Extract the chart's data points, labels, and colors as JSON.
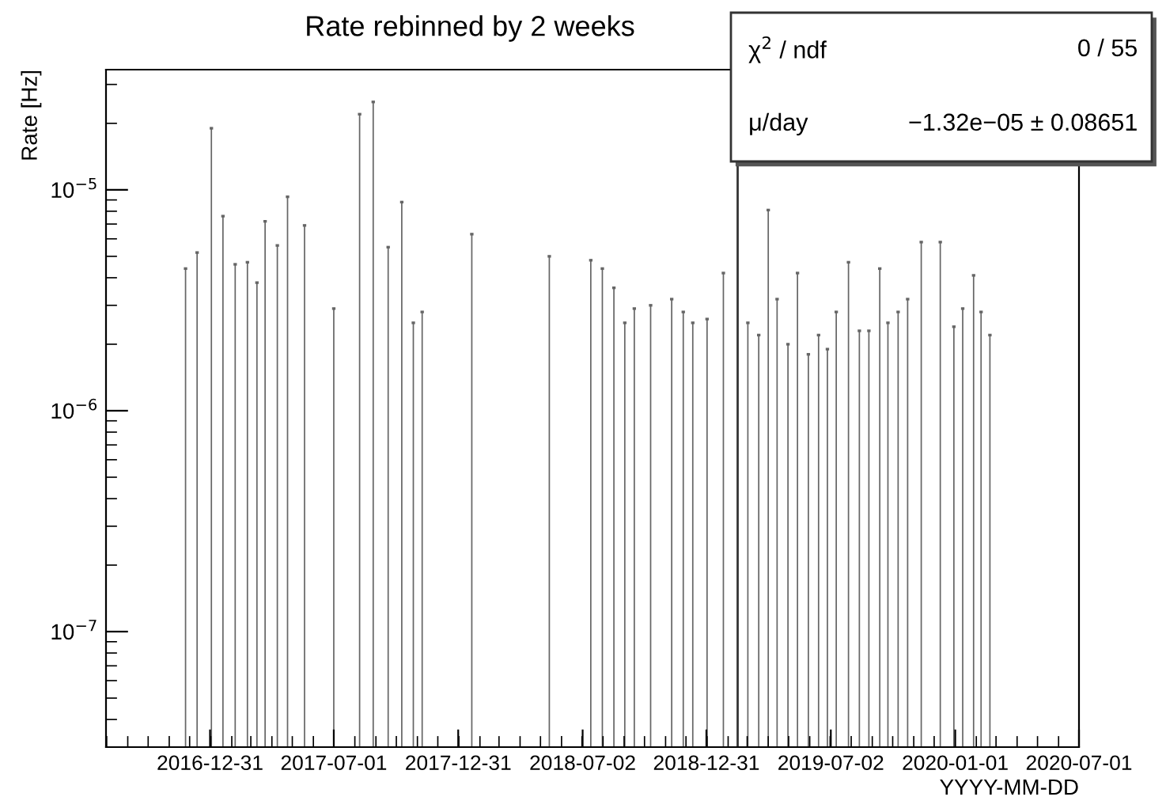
{
  "chart_data": {
    "type": "bar",
    "title": "Rate rebinned by 2 weeks",
    "xlabel": "YYYY-MM-DD",
    "ylabel": "Rate [Hz]",
    "x": [
      "2016-11-25",
      "2016-12-12",
      "2017-01-02",
      "2017-01-19",
      "2017-02-06",
      "2017-02-24",
      "2017-03-10",
      "2017-03-22",
      "2017-04-09",
      "2017-04-24",
      "2017-05-19",
      "2017-07-01",
      "2017-08-08",
      "2017-08-28",
      "2017-09-19",
      "2017-10-09",
      "2017-10-26",
      "2017-11-08",
      "2018-01-20",
      "2018-05-14",
      "2018-07-14",
      "2018-07-31",
      "2018-08-17",
      "2018-09-02",
      "2018-09-16",
      "2018-10-10",
      "2018-11-10",
      "2018-11-27",
      "2018-12-11",
      "2019-01-01",
      "2019-01-25",
      "2019-03-02",
      "2019-03-18",
      "2019-04-01",
      "2019-04-14",
      "2019-04-30",
      "2019-05-14",
      "2019-05-30",
      "2019-06-14",
      "2019-06-27",
      "2019-07-10",
      "2019-07-28",
      "2019-08-13",
      "2019-08-27",
      "2019-09-12",
      "2019-09-24",
      "2019-10-09",
      "2019-10-23",
      "2019-11-12",
      "2019-12-10",
      "2019-12-30",
      "2020-01-12",
      "2020-01-28",
      "2020-02-08",
      "2020-02-21"
    ],
    "values": [
      4.4e-06,
      5.2e-06,
      1.9e-05,
      7.6e-06,
      4.6e-06,
      4.7e-06,
      3.8e-06,
      7.2e-06,
      5.6e-06,
      9.3e-06,
      6.9e-06,
      2.9e-06,
      2.2e-05,
      2.5e-05,
      5.5e-06,
      8.8e-06,
      2.5e-06,
      2.8e-06,
      6.3e-06,
      5e-06,
      4.8e-06,
      4.4e-06,
      3.6e-06,
      2.5e-06,
      2.9e-06,
      3e-06,
      3.2e-06,
      2.8e-06,
      2.5e-06,
      2.6e-06,
      4.2e-06,
      2.5e-06,
      2.2e-06,
      8.1e-06,
      3.2e-06,
      2e-06,
      4.2e-06,
      1.8e-06,
      2.2e-06,
      1.9e-06,
      2.8e-06,
      4.7e-06,
      2.3e-06,
      2.3e-06,
      4.4e-06,
      2.5e-06,
      2.8e-06,
      3.2e-06,
      5.8e-06,
      5.8e-06,
      2.4e-06,
      2.9e-06,
      4.1e-06,
      2.8e-06,
      2.2e-06
    ],
    "color": "#666666",
    "log": true,
    "ylim": [
      3e-08,
      3.5e-05
    ],
    "yticks": [
      {
        "value": 1e-07,
        "label": "10$^{−7}$"
      },
      {
        "value": 1e-06,
        "label": "10$^{−6}$"
      },
      {
        "value": 1e-05,
        "label": "10$^{−5}$"
      }
    ],
    "xlim": [
      "2016-07-31",
      "2020-07-01"
    ],
    "xticks": [
      "2016-12-31",
      "2017-07-01",
      "2017-12-31",
      "2018-07-02",
      "2018-12-31",
      "2019-07-02",
      "2020-01-01",
      "2020-07-01"
    ],
    "ref_lines": [
      {
        "axis": "x",
        "value": "2019-02-15",
        "color": "#333333"
      }
    ],
    "annotations": [
      "χ$^{2}$ / ndf",
      "0 / 55",
      "μ/day",
      "−1.32e−05 ± 0.08651"
    ],
    "grid": false,
    "legend": false
  }
}
